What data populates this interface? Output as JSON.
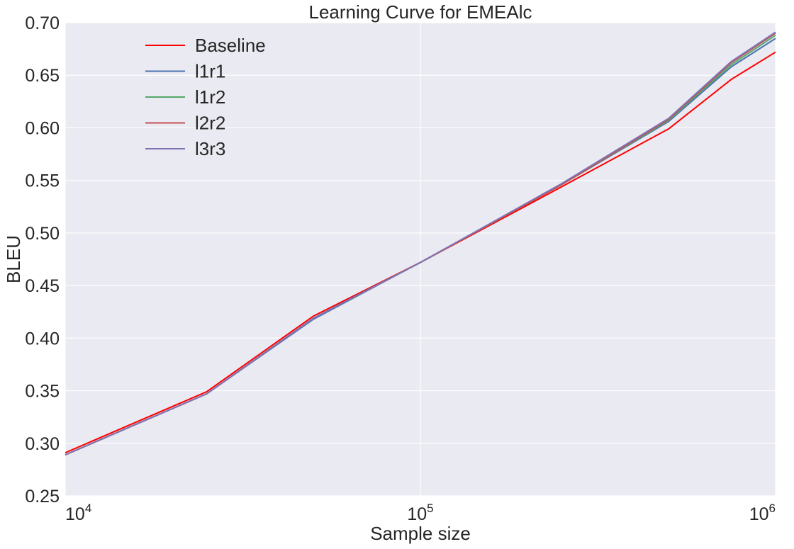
{
  "chart_data": {
    "type": "line",
    "title": "Learning Curve for EMEAlc",
    "xlabel": "Sample size",
    "ylabel": "BLEU",
    "x_scale": "log",
    "xlim": [
      10000,
      1000000
    ],
    "ylim": [
      0.25,
      0.7
    ],
    "y_ticks": [
      0.25,
      0.3,
      0.35,
      0.4,
      0.45,
      0.5,
      0.55,
      0.6,
      0.65,
      0.7
    ],
    "x_ticks": [
      {
        "value": 10000,
        "base": "10",
        "exp": "4"
      },
      {
        "value": 100000,
        "base": "10",
        "exp": "5"
      },
      {
        "value": 1000000,
        "base": "10",
        "exp": "6"
      }
    ],
    "grid": true,
    "legend_position": "upper-left",
    "x": [
      10000,
      25000,
      50000,
      100000,
      250000,
      500000,
      750000,
      1000000
    ],
    "series": [
      {
        "name": "Baseline",
        "color": "#ff0000",
        "values": [
          0.291,
          0.349,
          0.421,
          0.472,
          0.544,
          0.599,
          0.646,
          0.672
        ]
      },
      {
        "name": "l1r1",
        "color": "#4c72b0",
        "values": [
          0.289,
          0.347,
          0.418,
          0.472,
          0.546,
          0.606,
          0.658,
          0.685
        ]
      },
      {
        "name": "l1r2",
        "color": "#55a868",
        "values": [
          0.289,
          0.347,
          0.419,
          0.472,
          0.546,
          0.607,
          0.66,
          0.688
        ]
      },
      {
        "name": "l2r2",
        "color": "#c44e52",
        "values": [
          0.289,
          0.347,
          0.419,
          0.472,
          0.546,
          0.608,
          0.662,
          0.69
        ]
      },
      {
        "name": "l3r3",
        "color": "#8172b2",
        "values": [
          0.289,
          0.347,
          0.419,
          0.472,
          0.547,
          0.609,
          0.663,
          0.691
        ]
      }
    ],
    "colors": {
      "plot_background": "#eaeaf2",
      "grid": "#ffffff",
      "text": "#262626"
    }
  }
}
